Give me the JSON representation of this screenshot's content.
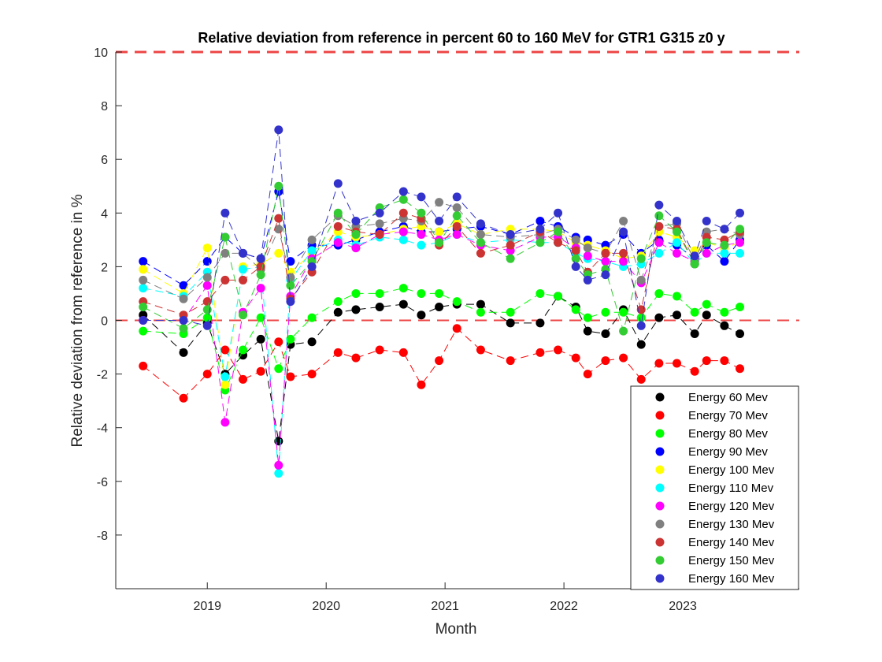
{
  "chart_data": {
    "type": "scatter",
    "title": "Relative deviation from reference in percent 60 to 160 MeV for GTR1 G315 z0 y",
    "xlabel": "Month",
    "ylabel": "Relative deviation from reference in %",
    "xlim": [
      2018.23,
      2023.98
    ],
    "ylim": [
      -10,
      10
    ],
    "xticks": [
      2019,
      2020,
      2021,
      2022,
      2023
    ],
    "xtick_labels": [
      "2019",
      "2020",
      "2021",
      "2022",
      "2023"
    ],
    "yticks": [
      -8,
      -6,
      -4,
      -2,
      0,
      2,
      4,
      6,
      8,
      10
    ],
    "ytick_labels": [
      "-8",
      "-6",
      "-4",
      "-2",
      "0",
      "2",
      "4",
      "6",
      "8",
      "10"
    ],
    "reference_lines": [
      {
        "y": 0,
        "color": "#ee4444",
        "style": "dashed"
      },
      {
        "y": 10,
        "color": "#ee4444",
        "style": "dashed"
      }
    ],
    "legend_position": "bottom-right",
    "x": [
      2018.46,
      2018.8,
      2019.0,
      2019.15,
      2019.3,
      2019.45,
      2019.6,
      2019.7,
      2019.88,
      2020.1,
      2020.25,
      2020.45,
      2020.65,
      2020.8,
      2020.95,
      2021.1,
      2021.3,
      2021.55,
      2021.8,
      2021.95,
      2022.1,
      2022.2,
      2022.35,
      2022.5,
      2022.65,
      2022.8,
      2022.95,
      2023.1,
      2023.2,
      2023.35,
      2023.48
    ],
    "series": [
      {
        "name": "Energy 60 Mev",
        "color": "#000000",
        "values": [
          0.2,
          -1.2,
          -0.1,
          -2.0,
          -1.3,
          -0.7,
          -4.5,
          -0.9,
          -0.8,
          0.3,
          0.4,
          0.5,
          0.6,
          0.2,
          0.5,
          0.6,
          0.6,
          -0.1,
          -0.1,
          0.9,
          0.5,
          -0.4,
          -0.5,
          0.4,
          -0.9,
          0.1,
          0.2,
          -0.5,
          0.2,
          -0.2,
          -0.5
        ]
      },
      {
        "name": "Energy 70 Mev",
        "color": "#ff0000",
        "values": [
          -1.7,
          -2.9,
          -2.0,
          -1.1,
          -2.2,
          -1.9,
          -0.8,
          -2.1,
          -2.0,
          -1.2,
          -1.4,
          -1.1,
          -1.2,
          -2.4,
          -1.5,
          -0.3,
          -1.1,
          -1.5,
          -1.2,
          -1.1,
          -1.4,
          -2.0,
          -1.5,
          -1.4,
          -2.2,
          -1.6,
          -1.6,
          -1.9,
          -1.5,
          -1.5,
          -1.8
        ]
      },
      {
        "name": "Energy 80 Mev",
        "color": "#00ff00",
        "values": [
          -0.4,
          -0.5,
          0.1,
          -2.6,
          -1.1,
          0.1,
          -1.8,
          -0.7,
          0.1,
          0.7,
          1.0,
          1.0,
          1.2,
          1.0,
          1.0,
          0.7,
          0.3,
          0.3,
          1.0,
          0.9,
          0.4,
          0.1,
          0.3,
          0.3,
          0.1,
          1.0,
          0.9,
          0.3,
          0.6,
          0.3,
          0.5
        ]
      },
      {
        "name": "Energy 90 Mev",
        "color": "#0000ff",
        "values": [
          2.2,
          1.3,
          2.2,
          3.1,
          2.5,
          2.3,
          4.8,
          2.2,
          2.8,
          2.8,
          3.0,
          3.3,
          3.5,
          3.3,
          3.3,
          3.4,
          3.5,
          3.2,
          3.7,
          3.5,
          3.1,
          3.0,
          2.8,
          3.2,
          2.5,
          3.0,
          2.8,
          2.3,
          2.8,
          2.2,
          3.0
        ]
      },
      {
        "name": "Energy 100 Mev",
        "color": "#ffff00",
        "values": [
          1.9,
          1.0,
          2.7,
          -2.4,
          2.0,
          2.1,
          2.5,
          1.8,
          2.5,
          3.3,
          3.1,
          3.2,
          3.4,
          3.5,
          3.3,
          3.6,
          3.2,
          3.4,
          3.4,
          3.3,
          2.9,
          2.8,
          2.6,
          2.3,
          2.4,
          3.3,
          3.1,
          2.6,
          2.9,
          2.7,
          2.9
        ]
      },
      {
        "name": "Energy 110 Mev",
        "color": "#00ffff",
        "values": [
          1.2,
          0.9,
          1.8,
          -2.1,
          1.9,
          2.0,
          -5.7,
          1.5,
          2.6,
          3.0,
          2.8,
          3.1,
          3.0,
          2.8,
          2.9,
          3.2,
          2.9,
          3.0,
          2.9,
          2.9,
          2.5,
          2.3,
          2.2,
          2.0,
          2.1,
          2.5,
          2.9,
          2.1,
          2.5,
          2.5,
          2.5
        ]
      },
      {
        "name": "Energy 120 Mev",
        "color": "#ff00ff",
        "values": [
          0.0,
          0.0,
          1.3,
          -3.8,
          0.3,
          1.2,
          -5.4,
          0.9,
          2.3,
          2.9,
          2.7,
          3.2,
          3.3,
          3.2,
          3.0,
          3.2,
          2.8,
          2.6,
          3.1,
          3.1,
          2.7,
          2.4,
          2.2,
          2.2,
          1.4,
          2.9,
          2.5,
          2.2,
          2.5,
          2.8,
          2.9
        ]
      },
      {
        "name": "Energy 130 Mev",
        "color": "#808080",
        "values": [
          1.5,
          0.8,
          1.6,
          2.5,
          2.5,
          1.9,
          3.4,
          1.6,
          3.0,
          3.9,
          3.5,
          3.6,
          3.8,
          3.7,
          4.4,
          4.2,
          3.2,
          3.1,
          3.2,
          3.4,
          3.0,
          2.7,
          2.5,
          3.7,
          1.5,
          3.5,
          3.6,
          2.2,
          3.3,
          3.4,
          3.2
        ]
      },
      {
        "name": "Energy 140 Mev",
        "color": "#cc3333",
        "values": [
          0.7,
          0.2,
          0.7,
          1.5,
          1.5,
          2.0,
          3.8,
          0.8,
          1.8,
          3.5,
          3.3,
          3.2,
          4.0,
          3.8,
          2.8,
          3.5,
          2.5,
          2.8,
          3.3,
          2.9,
          2.6,
          1.8,
          2.5,
          2.5,
          0.4,
          3.5,
          3.4,
          2.1,
          3.1,
          3.0,
          3.3
        ]
      },
      {
        "name": "Energy 150 Mev",
        "color": "#33cc33",
        "values": [
          0.5,
          -0.3,
          0.4,
          3.1,
          0.2,
          1.7,
          5.0,
          1.3,
          2.2,
          4.0,
          3.2,
          4.2,
          4.5,
          4.0,
          2.9,
          3.9,
          2.9,
          2.3,
          2.9,
          3.3,
          2.3,
          1.7,
          1.9,
          -0.4,
          2.3,
          3.9,
          3.3,
          2.1,
          2.9,
          2.8,
          3.4
        ]
      },
      {
        "name": "Energy 160 Mev",
        "color": "#3333cc",
        "values": [
          0.0,
          0.0,
          -0.2,
          4.0,
          2.5,
          2.3,
          7.1,
          0.7,
          2.0,
          5.1,
          3.7,
          4.0,
          4.8,
          4.6,
          3.7,
          4.6,
          3.6,
          3.2,
          3.4,
          4.0,
          2.0,
          1.5,
          1.7,
          3.3,
          -0.2,
          4.3,
          3.7,
          2.4,
          3.7,
          3.4,
          4.0
        ]
      }
    ]
  }
}
